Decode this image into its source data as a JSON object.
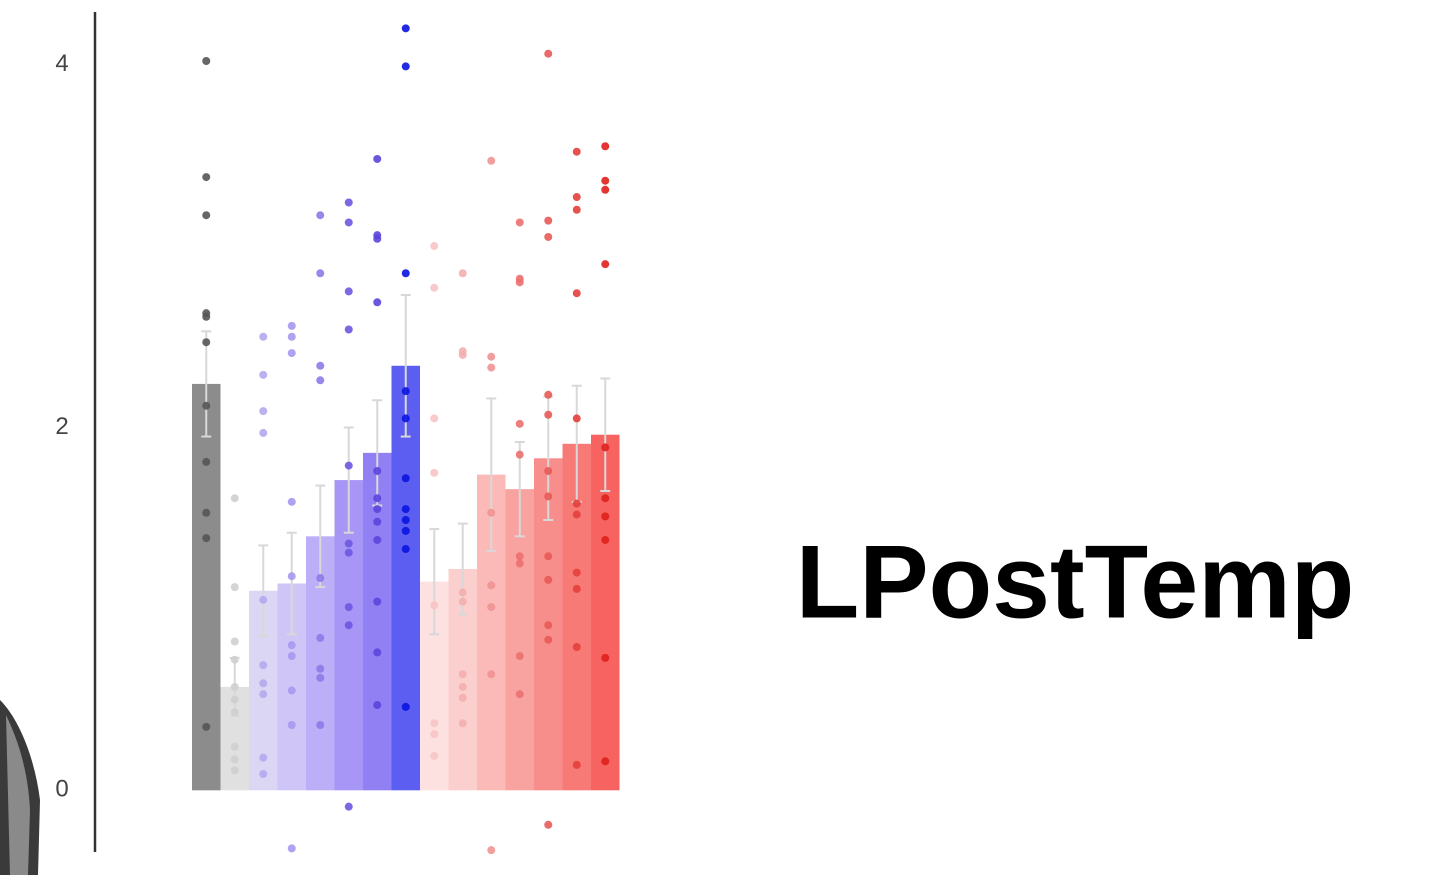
{
  "chart_data": {
    "type": "bar",
    "title": "LPostTemp",
    "values": [
      2.24,
      0.57,
      1.1,
      1.14,
      1.4,
      1.71,
      1.86,
      2.34,
      1.15,
      1.22,
      1.74,
      1.66,
      1.83,
      1.91,
      1.96
    ],
    "errors": [
      0.29,
      0.16,
      0.25,
      0.28,
      0.28,
      0.29,
      0.29,
      0.39,
      0.29,
      0.25,
      0.42,
      0.26,
      0.34,
      0.32,
      0.31
    ],
    "colors": [
      "#8c8c8c",
      "#e0e0e0",
      "#dcd6f5",
      "#cfc6f7",
      "#bcaef7",
      "#a796f5",
      "#9080f3",
      "#5b5ef0",
      "#fde0e0",
      "#fccfcf",
      "#fbb9b7",
      "#f9a3a1",
      "#f88e8b",
      "#f77a77",
      "#f66361"
    ],
    "point_colors": [
      "#555555",
      "#cfcfcf",
      "#b5a8ee",
      "#a798ee",
      "#8e7ae8",
      "#6d58e0",
      "#5a45dc",
      "#0a14e0",
      "#f7c4c4",
      "#f3aeae",
      "#ef9393",
      "#ec7070",
      "#e85a56",
      "#e43f3b",
      "#e0201c"
    ],
    "points": [
      [
        4.02,
        3.38,
        3.17,
        2.63,
        2.61,
        2.47,
        2.12,
        1.81,
        1.53,
        1.39,
        0.35
      ],
      [
        1.61,
        1.12,
        0.82,
        0.72,
        0.57,
        0.5,
        0.43,
        0.24,
        0.17,
        0.11
      ],
      [
        2.5,
        2.29,
        2.09,
        1.97,
        1.05,
        0.69,
        0.59,
        0.53,
        0.18,
        0.09
      ],
      [
        2.56,
        2.5,
        2.41,
        1.59,
        1.18,
        0.8,
        0.74,
        0.55,
        0.36,
        -0.32
      ],
      [
        3.17,
        2.85,
        2.34,
        2.26,
        1.17,
        0.84,
        0.67,
        0.62,
        0.36
      ],
      [
        3.24,
        3.13,
        2.75,
        2.54,
        1.79,
        1.36,
        1.31,
        1.01,
        0.91,
        -0.09
      ],
      [
        3.48,
        3.06,
        3.04,
        2.69,
        1.76,
        1.61,
        1.55,
        1.48,
        1.38,
        1.04,
        0.76,
        0.47
      ],
      [
        4.2,
        3.99,
        2.85,
        2.2,
        2.05,
        1.72,
        1.55,
        1.49,
        1.43,
        1.33,
        0.46
      ],
      [
        3.0,
        2.77,
        2.05,
        1.75,
        1.02,
        0.37,
        0.31,
        0.19
      ],
      [
        2.85,
        2.42,
        2.4,
        1.09,
        1.04,
        0.64,
        0.57,
        0.51,
        0.37
      ],
      [
        3.47,
        2.39,
        2.33,
        1.53,
        1.13,
        1.01,
        0.64,
        -0.33
      ],
      [
        3.13,
        2.82,
        2.8,
        2.02,
        1.85,
        1.29,
        1.25,
        0.74,
        0.53
      ],
      [
        4.06,
        3.14,
        3.05,
        2.18,
        2.07,
        1.76,
        1.62,
        1.29,
        1.16,
        0.91,
        0.83,
        -0.19
      ],
      [
        3.52,
        3.27,
        3.2,
        2.74,
        2.05,
        1.58,
        1.52,
        1.2,
        1.11,
        0.79,
        0.14
      ],
      [
        3.55,
        3.36,
        3.31,
        2.9,
        1.89,
        1.61,
        1.51,
        1.38,
        0.73,
        0.16
      ]
    ],
    "ylim": [
      -0.34,
      4.29
    ],
    "yticks": [
      0,
      2,
      4
    ]
  }
}
